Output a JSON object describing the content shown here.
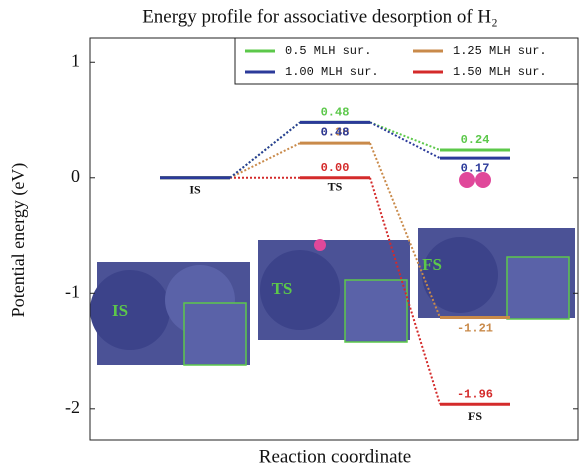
{
  "chart_data": {
    "type": "energy_profile",
    "title": "Energy profile for associative desorption of H₂",
    "y_label": "Potential energy (eV)",
    "x_label": "Reaction coordinate",
    "categories": [
      "IS",
      "TS",
      "FS"
    ],
    "series": [
      {
        "name": "0.5 MLH sur.",
        "color": "#5cc84a",
        "values": [
          0,
          0.48,
          0.24
        ],
        "value_labels": [
          null,
          "0.48",
          "0.24"
        ]
      },
      {
        "name": "1.00 MLH sur.",
        "color": "#2b3a9a",
        "values": [
          0,
          0.48,
          0.17
        ],
        "value_labels": [
          null,
          "0.48",
          "0.17"
        ]
      },
      {
        "name": "1.25 MLH sur.",
        "color": "#c98a4a",
        "values": [
          0,
          0.3,
          -1.21
        ],
        "value_labels": [
          null,
          "0.30",
          "-1.21"
        ]
      },
      {
        "name": "1.50 MLH sur.",
        "color": "#d42a2a",
        "values": [
          0,
          0.0,
          -1.96
        ],
        "value_labels": [
          null,
          "0.00",
          "-1.96"
        ]
      }
    ],
    "ylim": [
      -2.27,
      1.21
    ],
    "yticks": [
      -2,
      -1,
      0,
      1
    ],
    "legend": "upper right"
  }
}
